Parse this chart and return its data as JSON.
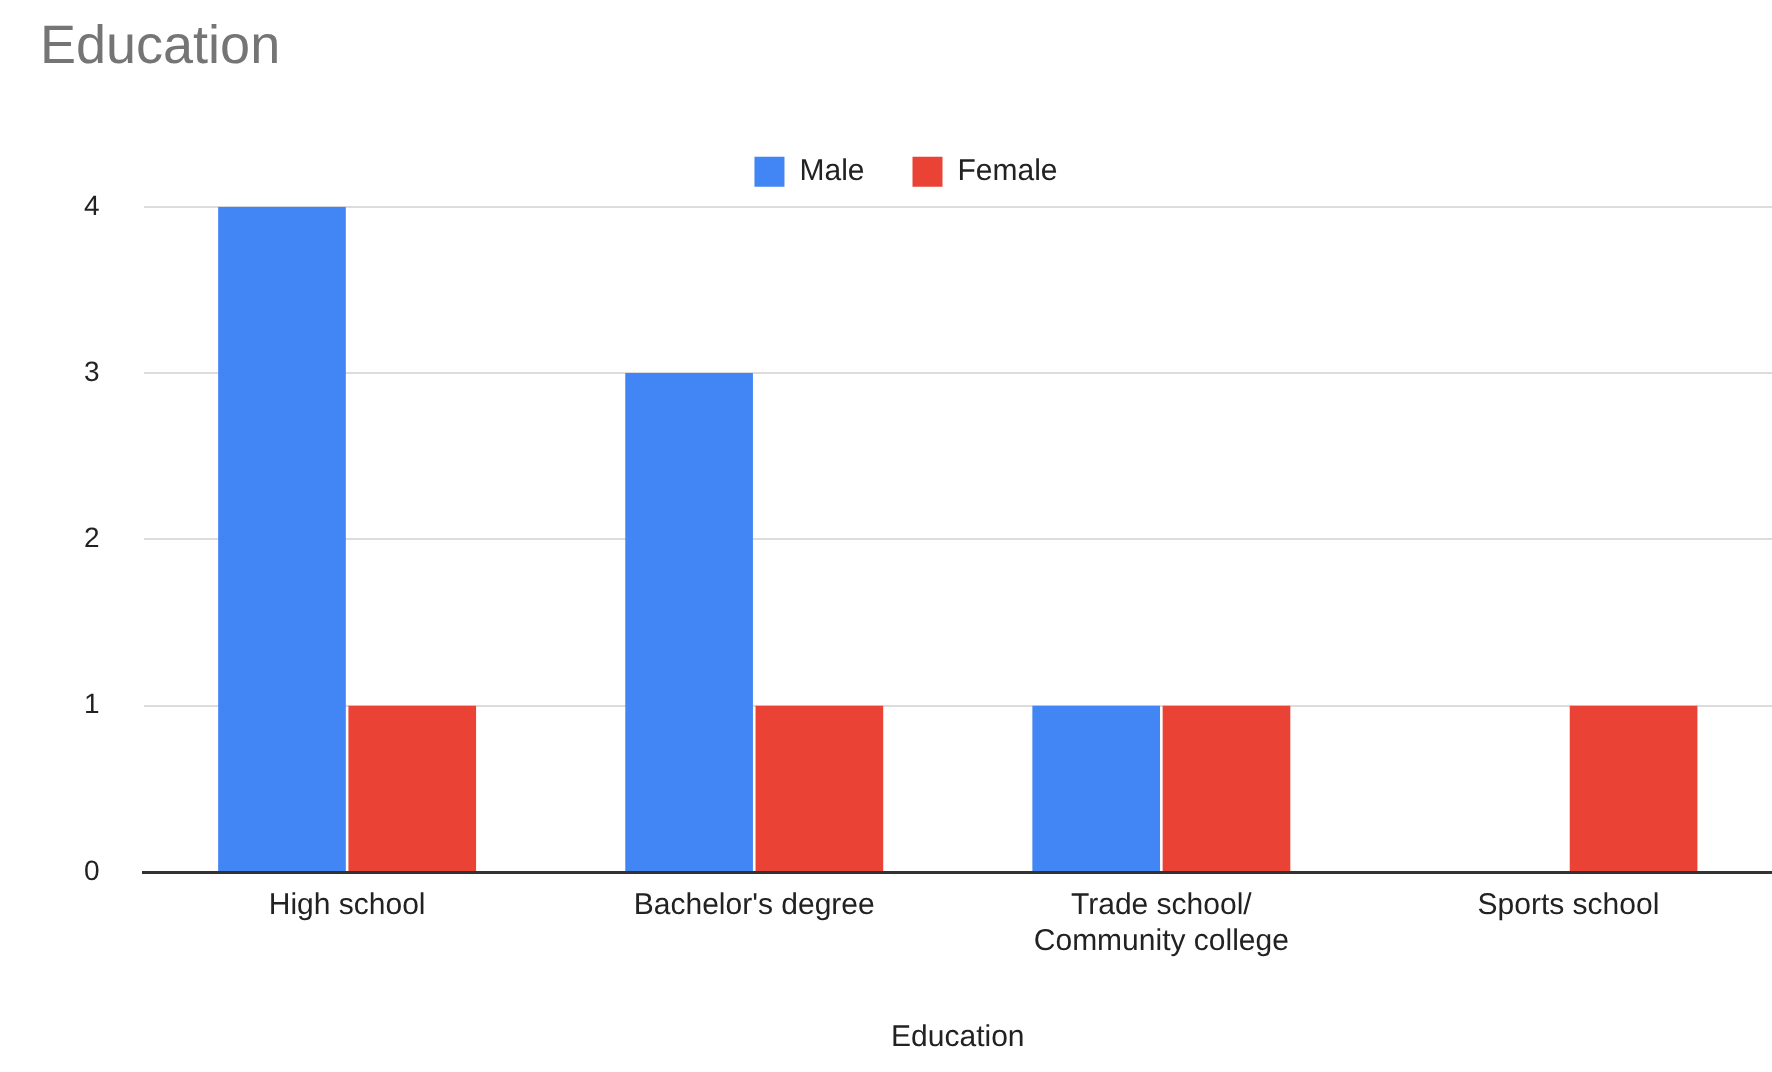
{
  "chart_data": {
    "type": "bar",
    "title": "Education",
    "xlabel": "Education",
    "categories": [
      "High school",
      "Bachelor's degree",
      "Trade school/ Community college",
      "Sports school"
    ],
    "series": [
      {
        "name": "Male",
        "color": "#4285f4",
        "values": [
          4,
          3,
          1,
          0
        ]
      },
      {
        "name": "Female",
        "color": "#ea4335",
        "values": [
          1,
          1,
          1,
          1
        ]
      }
    ],
    "ylim": [
      0,
      4
    ],
    "yticks": [
      0,
      1,
      2,
      3,
      4
    ],
    "grid": "y",
    "legend": "top"
  }
}
